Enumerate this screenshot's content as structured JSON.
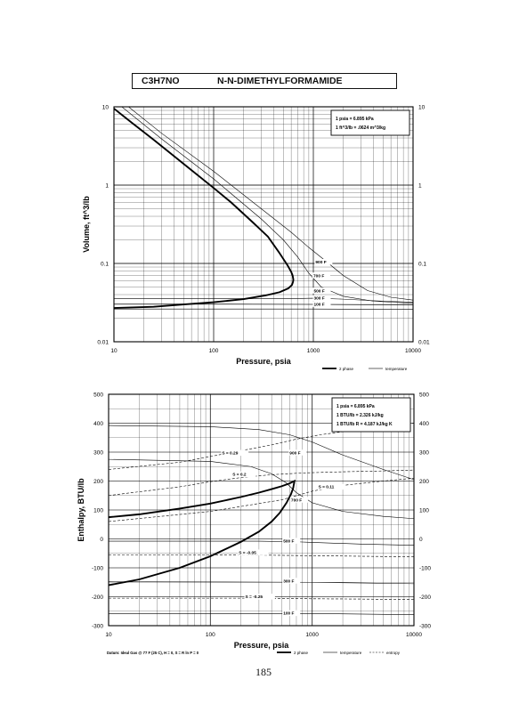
{
  "title": {
    "formula": "C3H7NO",
    "name": "N-N-DIMETHYLFORMAMIDE"
  },
  "page_number": "185",
  "chart_data": [
    {
      "id": "volume",
      "type": "line",
      "xscale": "log",
      "yscale": "log",
      "xlim": [
        10,
        10000
      ],
      "ylim": [
        0.01,
        10
      ],
      "xlabel": "Pressure,  psia",
      "ylabel": "Volume, ft^3/lb",
      "x_ticks": [
        10,
        100,
        1000,
        10000
      ],
      "x_tick_labels": [
        "10",
        "100",
        "1000",
        "10000"
      ],
      "y_ticks": [
        0.01,
        0.1,
        1,
        10
      ],
      "y_tick_labels": [
        "0.01",
        "0.1",
        "1",
        "10"
      ],
      "grid": true,
      "conversion_box": [
        "1 psia = 6.895 kPa",
        "1 ft^3/lb = .0624 m^3/kg"
      ],
      "legend": [
        {
          "label": "2 phase",
          "style": "thick"
        },
        {
          "label": "temperature",
          "style": "thin"
        }
      ],
      "series": [
        {
          "style": "thick",
          "x": [
            10,
            15,
            25,
            40,
            60,
            100,
            150,
            250,
            350,
            450,
            550,
            600,
            620,
            630,
            625,
            610,
            560,
            460,
            330,
            200,
            100,
            50,
            25,
            10
          ],
          "y": [
            9.5,
            6.3,
            3.8,
            2.35,
            1.55,
            0.92,
            0.6,
            0.33,
            0.22,
            0.14,
            0.095,
            0.078,
            0.07,
            0.062,
            0.058,
            0.053,
            0.048,
            0.043,
            0.039,
            0.035,
            0.032,
            0.03,
            0.028,
            0.027
          ]
        },
        {
          "label": "900 F",
          "style": "thin",
          "label_at": [
            1050,
            0.1
          ],
          "x": [
            14,
            30,
            100,
            300,
            600,
            900,
            1300,
            2000,
            3500,
            6000,
            10000
          ],
          "y": [
            10,
            4.6,
            1.5,
            0.5,
            0.25,
            0.16,
            0.11,
            0.07,
            0.045,
            0.037,
            0.034
          ]
        },
        {
          "label": "700 F",
          "style": "thin",
          "label_at": [
            1000,
            0.067
          ],
          "x": [
            12,
            30,
            100,
            300,
            500,
            700,
            900,
            1200,
            2000,
            4000,
            10000
          ],
          "y": [
            10,
            3.9,
            1.2,
            0.37,
            0.2,
            0.12,
            0.075,
            0.05,
            0.038,
            0.033,
            0.031
          ]
        },
        {
          "label": "500 F",
          "style": "thin",
          "label_at": [
            1010,
            0.043
          ],
          "x": [
            10,
            600,
            1000,
            2000,
            5000,
            10000
          ],
          "y": [
            0.0355,
            0.0355,
            0.036,
            0.035,
            0.033,
            0.032
          ]
        },
        {
          "label": "300 F",
          "style": "thin",
          "label_at": [
            1010,
            0.0345
          ],
          "x": [
            10,
            1000,
            3000,
            10000
          ],
          "y": [
            0.0305,
            0.03,
            0.0298,
            0.0295
          ]
        },
        {
          "label": "100 F",
          "style": "thin",
          "label_at": [
            1010,
            0.029
          ],
          "x": [
            10,
            1000,
            10000
          ],
          "y": [
            0.0262,
            0.0262,
            0.026
          ]
        }
      ]
    },
    {
      "id": "enthalpy",
      "type": "line",
      "xscale": "log",
      "xlim": [
        10,
        10000
      ],
      "ylim": [
        -300,
        500
      ],
      "xlabel": "Pressure,  psia",
      "ylabel": "Enthalpy, BTU/lb",
      "x_ticks": [
        10,
        100,
        1000,
        10000
      ],
      "x_tick_labels": [
        "10",
        "100",
        "1000",
        "10000"
      ],
      "y_ticks": [
        -300,
        -200,
        -100,
        0,
        100,
        200,
        300,
        400,
        500
      ],
      "y_tick_labels": [
        "-300",
        "-200",
        "-100",
        "0",
        "100",
        "200",
        "300",
        "400",
        "500"
      ],
      "grid": true,
      "conversion_box": [
        "1 psia = 6.895 kPa",
        "1 BTU/lb = 2.326 kJ/kg",
        "1 BTU/lb R = 4.187 kJ/kg K"
      ],
      "datum_note": "Datum: Ideal Gas @ 77 F (25 C), H = 0, S = R ln P = 0",
      "legend": [
        {
          "label": "2 phase",
          "style": "thick"
        },
        {
          "label": "temperature",
          "style": "thin"
        },
        {
          "label": "entropy",
          "style": "dashed"
        }
      ],
      "series": [
        {
          "style": "thick",
          "x": [
            10,
            20,
            50,
            100,
            200,
            300,
            400,
            500,
            600,
            650,
            670,
            650,
            620,
            560,
            480,
            400,
            300,
            200,
            100,
            50,
            20,
            10
          ],
          "y": [
            75,
            85,
            105,
            122,
            145,
            160,
            172,
            182,
            192,
            198,
            200,
            175,
            155,
            125,
            90,
            60,
            25,
            -10,
            -60,
            -100,
            -140,
            -160
          ]
        },
        {
          "label": "900 F",
          "style": "thin",
          "label_at": [
            600,
            293
          ],
          "x": [
            10,
            100,
            300,
            600,
            1000,
            2000,
            5000,
            10000
          ],
          "y": [
            392,
            388,
            378,
            360,
            335,
            290,
            240,
            205
          ]
        },
        {
          "label": "700 F",
          "style": "thin",
          "label_at": [
            620,
            130
          ],
          "x": [
            10,
            100,
            250,
            400,
            550,
            700,
            1000,
            2000,
            5000,
            10000
          ],
          "y": [
            275,
            268,
            250,
            225,
            195,
            160,
            125,
            95,
            78,
            70
          ]
        },
        {
          "label": "500 F",
          "style": "thin",
          "label_at": [
            520,
            -12
          ],
          "x": [
            10,
            300,
            700,
            1000,
            3000,
            10000
          ],
          "y": [
            -8,
            -8,
            -10,
            -12,
            -18,
            -22
          ]
        },
        {
          "label": "300 F",
          "style": "thin",
          "label_at": [
            520,
            -150
          ],
          "x": [
            10,
            1000,
            10000
          ],
          "y": [
            -148,
            -150,
            -155
          ]
        },
        {
          "label": "100 F",
          "style": "thin",
          "label_at": [
            520,
            -262
          ],
          "x": [
            10,
            1000,
            10000
          ],
          "y": [
            -258,
            -258,
            -262
          ]
        },
        {
          "label": "S = 0.29",
          "style": "dashed",
          "label_at": [
            130,
            292
          ],
          "x": [
            10,
            50,
            100,
            200,
            400,
            700,
            1200,
            2500,
            5000,
            10000
          ],
          "y": [
            240,
            265,
            285,
            305,
            325,
            345,
            360,
            375,
            388,
            400
          ]
        },
        {
          "label": "S = 0.2",
          "style": "dashed",
          "label_at": [
            165,
            218
          ],
          "x": [
            10,
            50,
            100,
            200,
            400,
            800,
            2000,
            5000,
            10000
          ],
          "y": [
            150,
            180,
            198,
            212,
            222,
            228,
            232,
            235,
            238
          ]
        },
        {
          "label": "S = 0.11",
          "style": "dashed",
          "label_at": [
            1150,
            175
          ],
          "x": [
            10,
            100,
            500,
            1000,
            2000,
            5000,
            10000
          ],
          "y": [
            60,
            95,
            135,
            165,
            185,
            200,
            210
          ]
        },
        {
          "label": "S = -0.05",
          "style": "dashed",
          "label_at": [
            190,
            -52
          ],
          "x": [
            10,
            100,
            300,
            1000,
            3000,
            10000
          ],
          "y": [
            -55,
            -55,
            -56,
            -58,
            -60,
            -62
          ]
        },
        {
          "label": "S = -0.25",
          "style": "dashed",
          "label_at": [
            220,
            -205
          ],
          "x": [
            10,
            100,
            300,
            1000,
            3000,
            10000
          ],
          "y": [
            -205,
            -205,
            -205,
            -207,
            -208,
            -210
          ]
        }
      ]
    }
  ]
}
